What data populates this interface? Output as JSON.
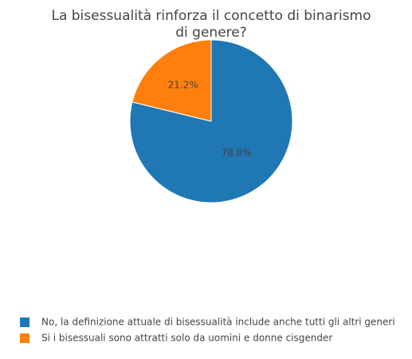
{
  "chart_data": {
    "type": "pie",
    "title": [
      "La bisessualità rinforza il concetto di binarismo",
      "di genere?"
    ],
    "categories": [
      "No, la definizione attuale di bisessualità include anche tutti gli altri generi",
      "Si i bisessuali sono attratti solo da uomini e donne cisgender"
    ],
    "values": [
      78.8,
      21.2
    ],
    "value_labels": [
      "78.8%",
      "21.2%"
    ],
    "colors": [
      "#1f77b4",
      "#ff7f0e"
    ],
    "legend": "bottom-left"
  }
}
